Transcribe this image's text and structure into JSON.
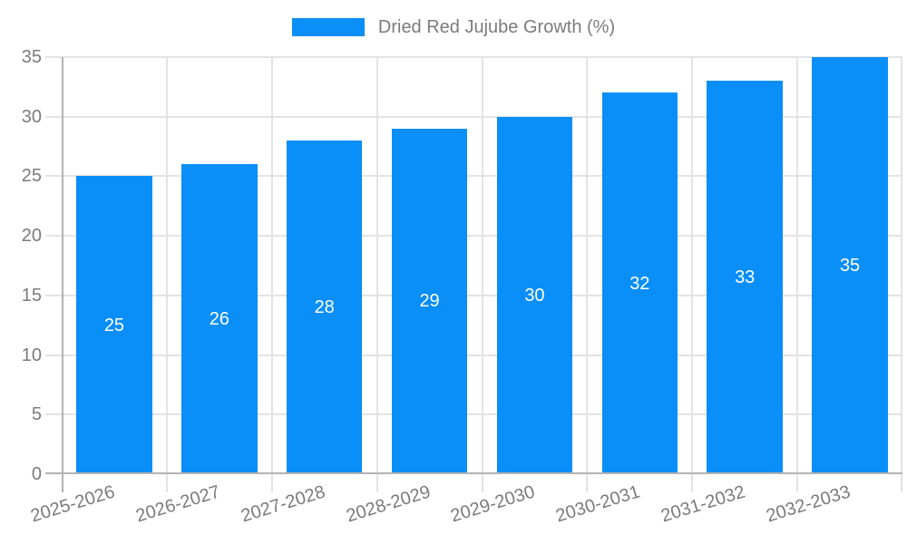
{
  "legend": {
    "label": "Dried Red Jujube Growth (%)",
    "position": "top"
  },
  "chart_data": {
    "type": "bar",
    "title": "",
    "categories": [
      "2025-2026",
      "2026-2027",
      "2027-2028",
      "2028-2029",
      "2029-2030",
      "2030-2031",
      "2031-2032",
      "2032-2033"
    ],
    "series": [
      {
        "name": "Dried Red Jujube Growth (%)",
        "values": [
          25,
          26,
          28,
          29,
          30,
          32,
          33,
          35
        ]
      }
    ],
    "value_labels_shown": true,
    "xlabel": "",
    "ylabel": "",
    "ylim": [
      0,
      35
    ],
    "yticks": [
      0,
      5,
      10,
      15,
      20,
      25,
      30,
      35
    ],
    "grid": true,
    "legend_position": "top center",
    "x_label_rotation_deg": -17,
    "bar_width_fraction": 0.72
  },
  "colors": {
    "bar": "#0a8ef8",
    "axis_line": "#b3b3b3",
    "gridline": "#e3e3e3",
    "tick_text": "#7b7b7b",
    "legend_text": "#7b7b7b",
    "value_label": "#ffffff",
    "background": "#ffffff"
  }
}
